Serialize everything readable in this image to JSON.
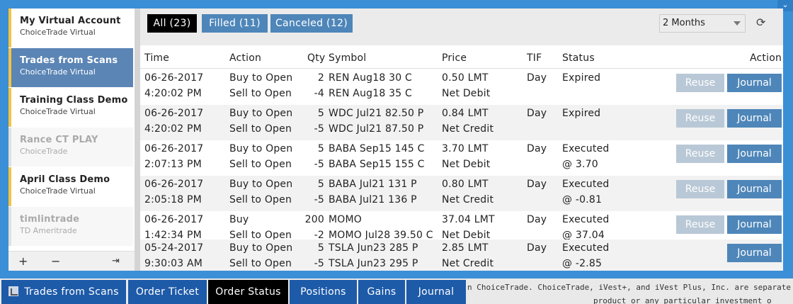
{
  "accounts": [
    {
      "name": "My Virtual Account",
      "broker": "ChoiceTrade Virtual",
      "state": "normal"
    },
    {
      "name": "Trades from Scans",
      "broker": "ChoiceTrade Virtual",
      "state": "active"
    },
    {
      "name": "Training Class Demo",
      "broker": "ChoiceTrade Virtual",
      "state": "normal"
    },
    {
      "name": "Rance CT PLAY",
      "broker": "ChoiceTrade",
      "state": "dim"
    },
    {
      "name": "April Class Demo",
      "broker": "ChoiceTrade Virtual",
      "state": "normal"
    },
    {
      "name": "timlintrade",
      "broker": "TD Ameritrade",
      "state": "dim"
    }
  ],
  "sidebar_tools": {
    "add": "+",
    "remove": "−",
    "logout": "⇥"
  },
  "filters": {
    "all": "All (23)",
    "filled": "Filled (11)",
    "canceled": "Canceled (12)"
  },
  "period": {
    "value": "2 Months"
  },
  "refresh_icon": "⟳",
  "columns": {
    "time": "Time",
    "action": "Action",
    "qty": "Qty",
    "symbol": "Symbol",
    "price": "Price",
    "tif": "TIF",
    "status": "Status",
    "actions": "Action"
  },
  "buttons": {
    "reuse": "Reuse",
    "journal": "Journal"
  },
  "orders": [
    {
      "date": "06-26-2017",
      "time": "4:20:02 PM",
      "action1": "Buy to Open",
      "action2": "Sell to Open",
      "qty1": "2",
      "qty2": "-4",
      "sym1": "REN Aug18 30 C",
      "sym2": "REN Aug18 35 C",
      "price1": "0.50 LMT",
      "price2": "Net Debit",
      "tif": "Day",
      "status1": "Expired",
      "status2": "",
      "reuse": true
    },
    {
      "date": "06-26-2017",
      "time": "4:20:02 PM",
      "action1": "Buy to Open",
      "action2": "Sell to Open",
      "qty1": "5",
      "qty2": "-5",
      "sym1": "WDC Jul21 82.50 P",
      "sym2": "WDC Jul21 87.50 P",
      "price1": "0.84 LMT",
      "price2": "Net Credit",
      "tif": "Day",
      "status1": "Expired",
      "status2": "",
      "reuse": true
    },
    {
      "date": "06-26-2017",
      "time": "2:07:13 PM",
      "action1": "Buy to Open",
      "action2": "Sell to Open",
      "qty1": "5",
      "qty2": "-5",
      "sym1": "BABA Sep15 145 C",
      "sym2": "BABA Sep15 155 C",
      "price1": "3.70 LMT",
      "price2": "Net Debit",
      "tif": "Day",
      "status1": "Executed",
      "status2": "@ 3.70",
      "reuse": true
    },
    {
      "date": "06-26-2017",
      "time": "2:05:18 PM",
      "action1": "Buy to Open",
      "action2": "Sell to Open",
      "qty1": "5",
      "qty2": "-5",
      "sym1": "BABA Jul21 131 P",
      "sym2": "BABA Jul21 136 P",
      "price1": "0.80 LMT",
      "price2": "Net Credit",
      "tif": "Day",
      "status1": "Executed",
      "status2": "@ -0.81",
      "reuse": true
    },
    {
      "date": "06-26-2017",
      "time": "1:42:34 PM",
      "action1": "Buy",
      "action2": "Sell to Open",
      "qty1": "200",
      "qty2": "-2",
      "sym1": "MOMO",
      "sym2": "MOMO Jul28 39.50 C",
      "price1": "37.04 LMT",
      "price2": "Net Debit",
      "tif": "Day",
      "status1": "Executed",
      "status2": "@ 37.04",
      "reuse": true
    },
    {
      "date": "05-24-2017",
      "time": "9:30:03 AM",
      "action1": "Buy to Open",
      "action2": "Sell to Open",
      "qty1": "5",
      "qty2": "-5",
      "sym1": "TSLA Jun23 285 P",
      "sym2": "TSLA Jun23 295 P",
      "price1": "2.85 LMT",
      "price2": "Net Credit",
      "tif": "Day",
      "status1": "Executed",
      "status2": "@ -2.85",
      "reuse": false
    }
  ],
  "bottom_tabs": [
    {
      "label": "Trades from Scans",
      "active": false
    },
    {
      "label": "Order Ticket",
      "active": false
    },
    {
      "label": "Order Status",
      "active": true
    },
    {
      "label": "Positions",
      "active": false
    },
    {
      "label": "Gains",
      "active": false
    },
    {
      "label": "Journal",
      "active": false
    }
  ],
  "footer": {
    "line1": "n ChoiceTrade. ChoiceTrade, iVest+, and iVest Plus, Inc. are separate companies with s",
    "line2": "product or any particular investment o"
  },
  "colors": {
    "frame": "#3b8fd6",
    "tab_blue": "#4e86b9",
    "bottom_tab": "#1d5aa8",
    "highlight": "#f5c342"
  }
}
